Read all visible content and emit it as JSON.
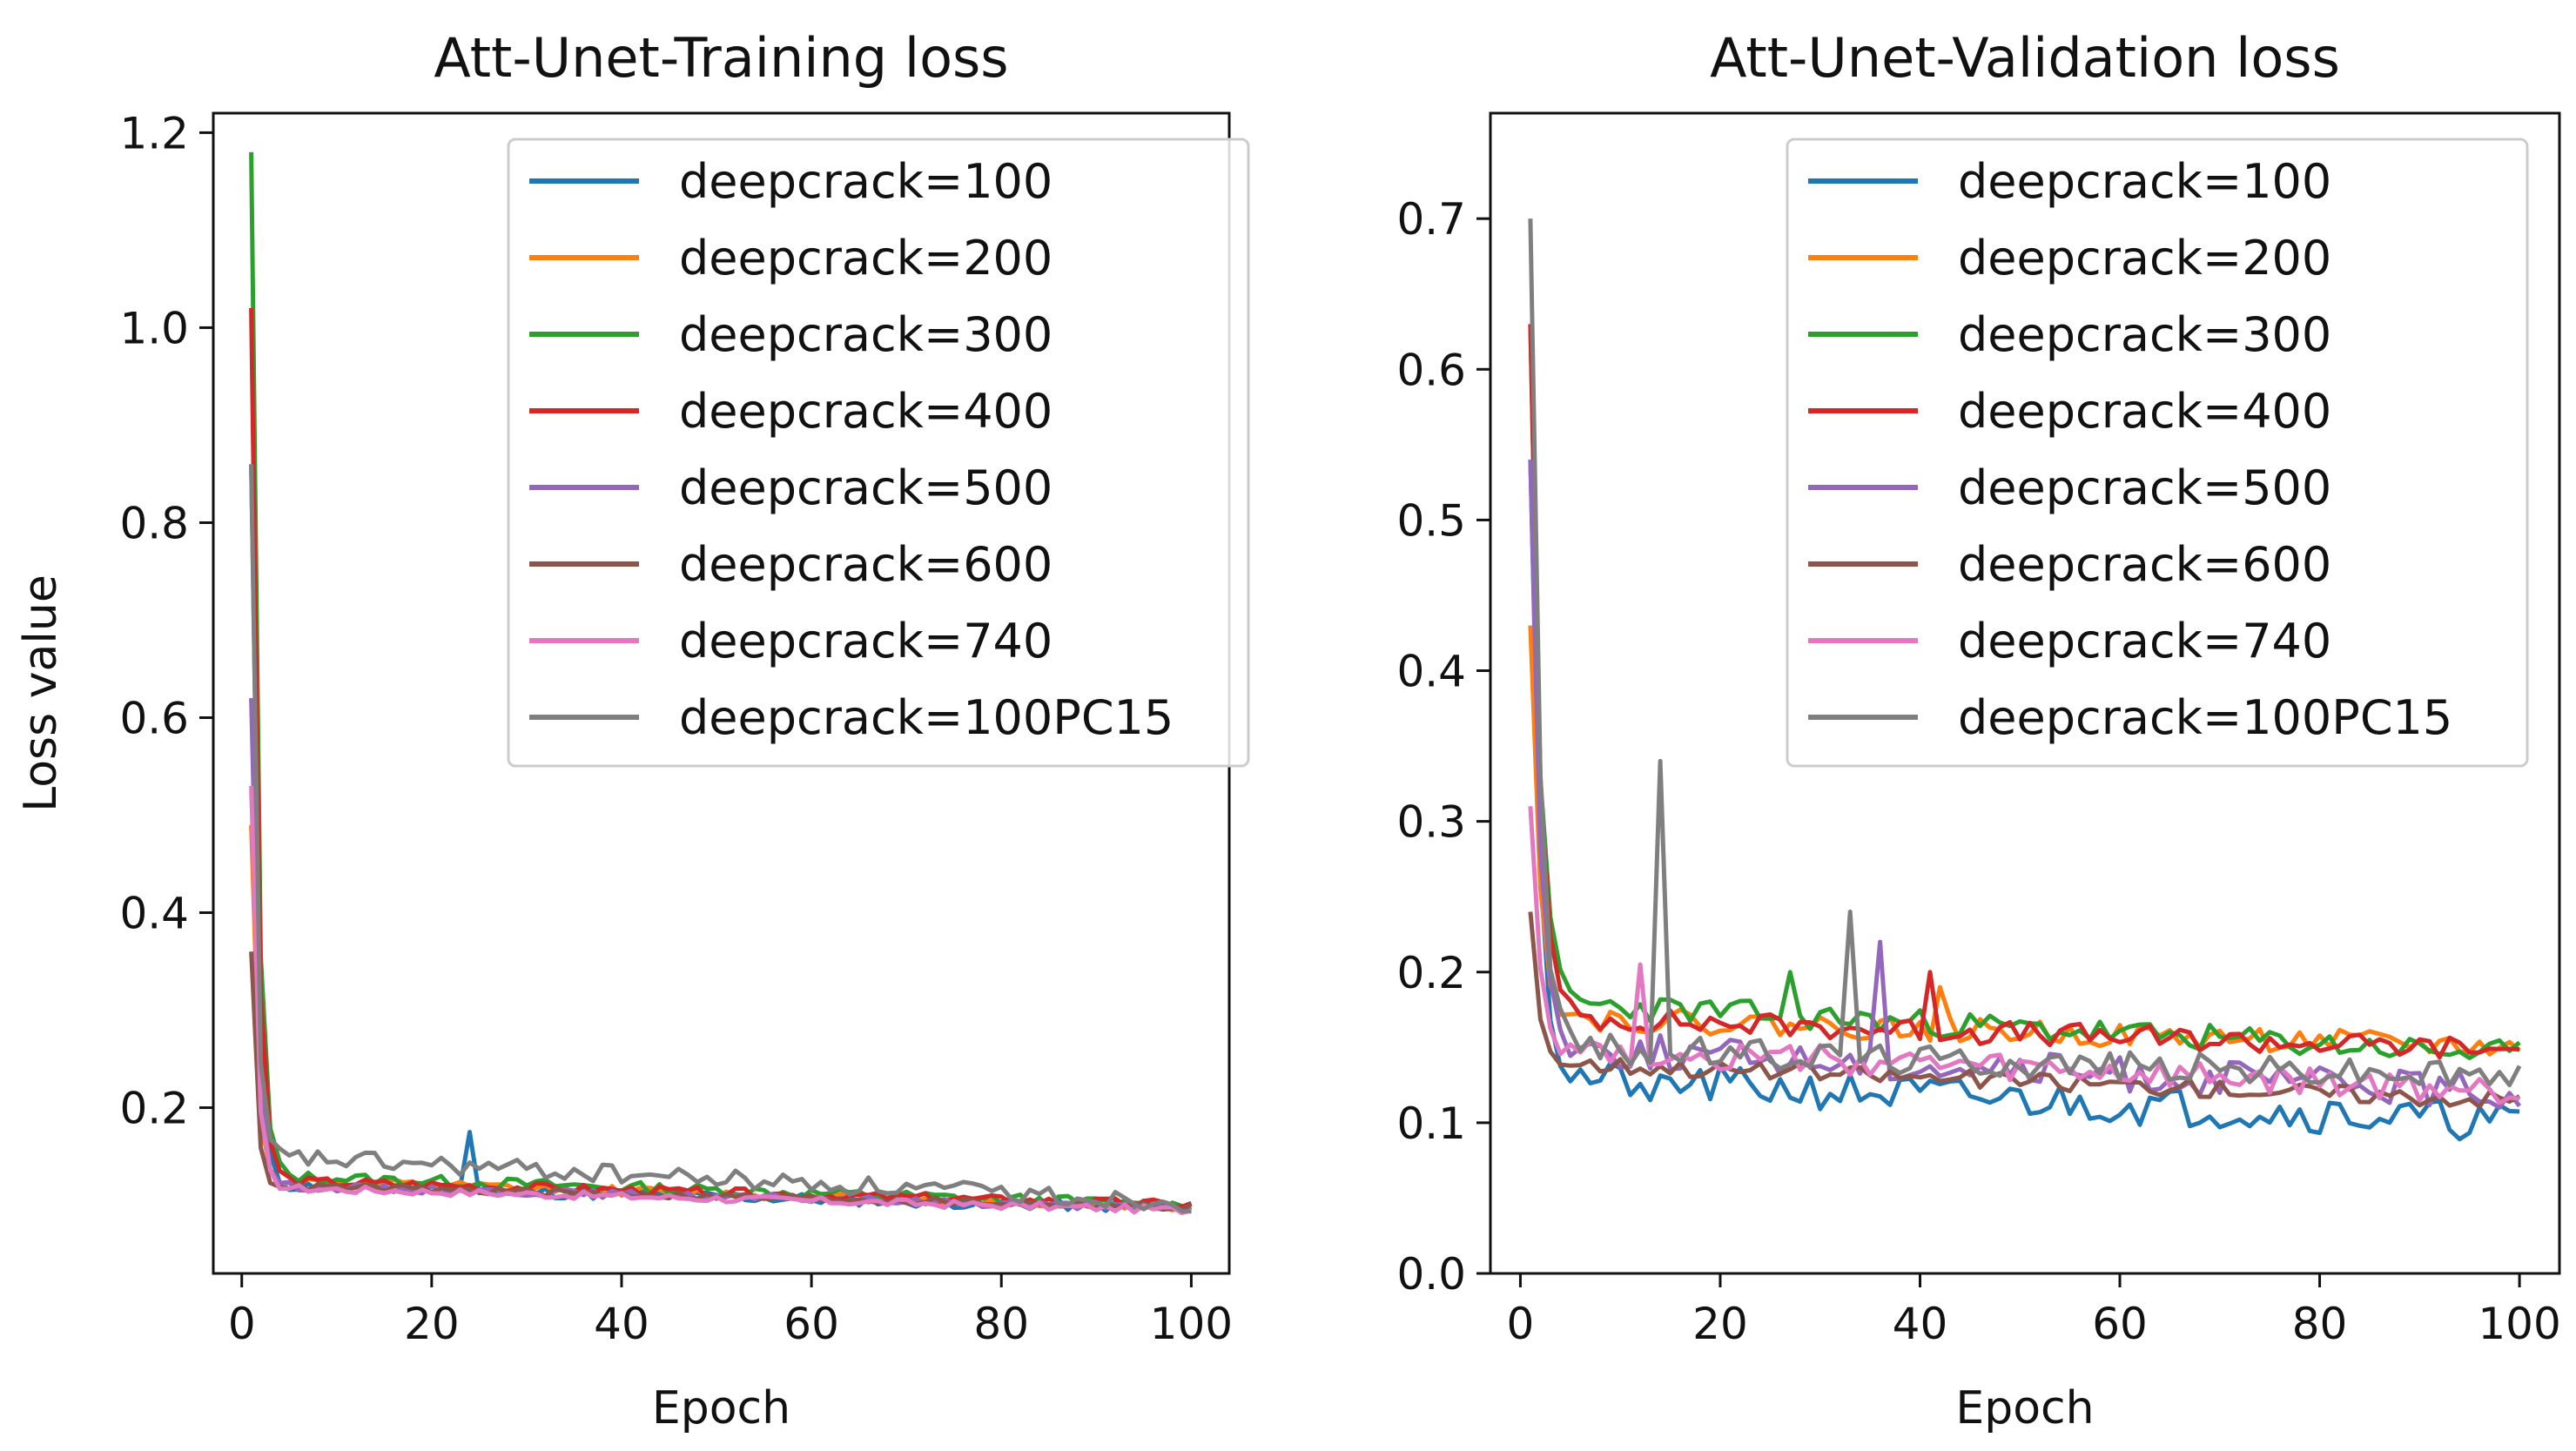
{
  "chart_data": [
    {
      "type": "line",
      "title": "Att-Unet-Training loss",
      "xlabel": "Epoch",
      "ylabel": "Loss value",
      "xlim": [
        -3,
        104
      ],
      "ylim": [
        0.03,
        1.22
      ],
      "xticks": [
        0,
        20,
        40,
        60,
        80,
        100
      ],
      "yticks": [
        0.2,
        0.4,
        0.6,
        0.8,
        1.0,
        1.2
      ],
      "xtick_labels": [
        "0",
        "20",
        "40",
        "60",
        "80",
        "100"
      ],
      "ytick_labels": [
        "0.2",
        "0.4",
        "0.6",
        "0.8",
        "1.0",
        "1.2"
      ],
      "grid": false,
      "legend_position": "top-right",
      "series": [
        {
          "name": "deepcrack=100",
          "color": "#1f77b4",
          "start": 0.86,
          "peak_epoch": 1,
          "decay": 0.62,
          "plateau": 0.12,
          "end": 0.097,
          "noise": 0.006,
          "spike_epoch": 24,
          "spike_value": 0.175,
          "seed": 11
        },
        {
          "name": "deepcrack=200",
          "color": "#ff7f0e",
          "start": 0.49,
          "peak_epoch": 1,
          "decay": 0.55,
          "plateau": 0.125,
          "end": 0.098,
          "noise": 0.005,
          "seed": 12
        },
        {
          "name": "deepcrack=300",
          "color": "#2ca02c",
          "start": 1.18,
          "peak_epoch": 1,
          "decay": 0.65,
          "plateau": 0.13,
          "end": 0.1,
          "noise": 0.006,
          "seed": 13
        },
        {
          "name": "deepcrack=400",
          "color": "#d62728",
          "start": 1.02,
          "peak_epoch": 1,
          "decay": 0.65,
          "plateau": 0.125,
          "end": 0.1,
          "noise": 0.005,
          "seed": 14
        },
        {
          "name": "deepcrack=500",
          "color": "#9467bd",
          "start": 0.62,
          "peak_epoch": 1,
          "decay": 0.6,
          "plateau": 0.12,
          "end": 0.097,
          "noise": 0.004,
          "seed": 15
        },
        {
          "name": "deepcrack=600",
          "color": "#8c564b",
          "start": 0.36,
          "peak_epoch": 1,
          "decay": 0.55,
          "plateau": 0.12,
          "end": 0.098,
          "noise": 0.004,
          "seed": 16
        },
        {
          "name": "deepcrack=740",
          "color": "#e377c2",
          "start": 0.53,
          "peak_epoch": 1,
          "decay": 0.6,
          "plateau": 0.118,
          "end": 0.095,
          "noise": 0.004,
          "seed": 17
        },
        {
          "name": "deepcrack=100PC15",
          "color": "#7f7f7f",
          "start": 0.86,
          "peak_epoch": 1,
          "decay": 0.5,
          "plateau": 0.15,
          "end": 0.103,
          "noise": 0.01,
          "seed": 18
        }
      ]
    },
    {
      "type": "line",
      "title": "Att-Unet-Validation loss",
      "xlabel": "Epoch",
      "ylabel": "",
      "xlim": [
        -3,
        104
      ],
      "ylim": [
        0.0,
        0.77
      ],
      "xticks": [
        0,
        20,
        40,
        60,
        80,
        100
      ],
      "yticks": [
        0.0,
        0.1,
        0.2,
        0.3,
        0.4,
        0.5,
        0.6,
        0.7
      ],
      "xtick_labels": [
        "0",
        "20",
        "40",
        "60",
        "80",
        "100"
      ],
      "ytick_labels": [
        "0.0",
        "0.1",
        "0.2",
        "0.3",
        "0.4",
        "0.5",
        "0.6",
        "0.7"
      ],
      "grid": false,
      "legend_position": "top-right",
      "series": [
        {
          "name": "deepcrack=100",
          "color": "#1f77b4",
          "start": 0.54,
          "peak_epoch": 1,
          "decay": 0.9,
          "plateau": 0.13,
          "end": 0.1,
          "noise": 0.013,
          "spike_epoch": 13,
          "spike_value": 0.115,
          "seed": 21
        },
        {
          "name": "deepcrack=200",
          "color": "#ff7f0e",
          "start": 0.43,
          "peak_epoch": 1,
          "decay": 0.9,
          "plateau": 0.17,
          "end": 0.15,
          "noise": 0.008,
          "spike_epoch": 42,
          "spike_value": 0.19,
          "seed": 22
        },
        {
          "name": "deepcrack=300",
          "color": "#2ca02c",
          "start": 0.63,
          "peak_epoch": 1,
          "decay": 0.9,
          "plateau": 0.18,
          "end": 0.145,
          "noise": 0.009,
          "spike_epoch": 27,
          "spike_value": 0.2,
          "seed": 23
        },
        {
          "name": "deepcrack=400",
          "color": "#d62728",
          "start": 0.63,
          "peak_epoch": 1,
          "decay": 0.9,
          "plateau": 0.17,
          "end": 0.148,
          "noise": 0.008,
          "spike_epoch": 41,
          "spike_value": 0.2,
          "seed": 24
        },
        {
          "name": "deepcrack=500",
          "color": "#9467bd",
          "start": 0.54,
          "peak_epoch": 1,
          "decay": 0.9,
          "plateau": 0.15,
          "end": 0.12,
          "noise": 0.012,
          "spike_epoch": 36,
          "spike_value": 0.22,
          "seed": 25
        },
        {
          "name": "deepcrack=600",
          "color": "#8c564b",
          "start": 0.24,
          "peak_epoch": 1,
          "decay": 0.8,
          "plateau": 0.14,
          "end": 0.115,
          "noise": 0.006,
          "seed": 26
        },
        {
          "name": "deepcrack=740",
          "color": "#e377c2",
          "start": 0.31,
          "peak_epoch": 1,
          "decay": 0.9,
          "plateau": 0.15,
          "end": 0.12,
          "noise": 0.01,
          "spike_epoch": 12,
          "spike_value": 0.205,
          "seed": 27
        },
        {
          "name": "deepcrack=100PC15",
          "color": "#7f7f7f",
          "start": 0.7,
          "peak_epoch": 1,
          "decay": 0.9,
          "plateau": 0.15,
          "end": 0.13,
          "noise": 0.01,
          "spike_epoch": 14,
          "spike_value": 0.34,
          "spike2_epoch": 33,
          "spike2_value": 0.24,
          "seed": 28
        }
      ]
    }
  ]
}
